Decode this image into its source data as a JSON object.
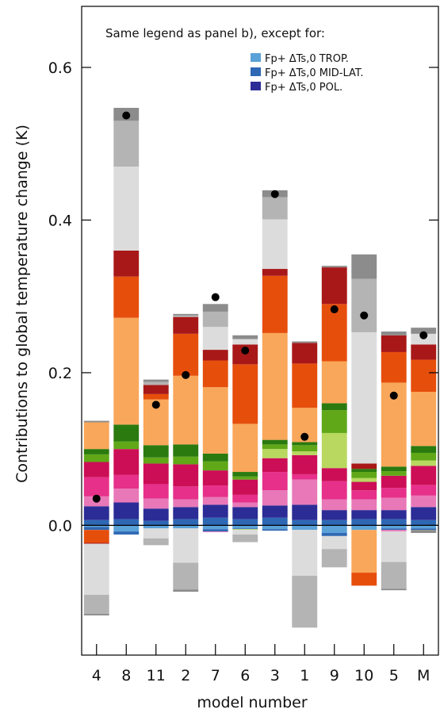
{
  "chart_data": {
    "type": "bar",
    "stacked": true,
    "xlabel": "model number",
    "ylabel": "Contributions to global temperature change (K)",
    "ylim": [
      -0.17,
      0.68
    ],
    "y_ticks": [
      "0.0",
      "0.2",
      "0.4",
      "0.6"
    ],
    "y_tick_values": [
      0.0,
      0.2,
      0.4,
      0.6
    ],
    "categories": [
      "4",
      "8",
      "11",
      "2",
      "7",
      "6",
      "3",
      "1",
      "9",
      "10",
      "5",
      "M"
    ],
    "annotation": "Same legend as panel b), except for:",
    "legend": {
      "placement": "top-right",
      "entries": [
        {
          "label": "Fp+ ΔTs,0 TROP.",
          "color": "#5aa2d8"
        },
        {
          "label": "Fp+ ΔTs,0 MID-LAT.",
          "color": "#2e68b4"
        },
        {
          "label": "Fp+ ΔTs,0 POL.",
          "color": "#2c2c96"
        }
      ]
    },
    "component_colors": [
      "#5aa2d8",
      "#2e68b4",
      "#2c2c96",
      "#e878b8",
      "#e6308a",
      "#cc0e56",
      "#b8d860",
      "#60a818",
      "#2a7a10",
      "#f9a75a",
      "#e64e0c",
      "#a81818",
      "#dcdcdc",
      "#b4b4b4",
      "#8c8c8c"
    ],
    "bars": [
      {
        "model": "4",
        "total": 0.035,
        "positive": [
          0.0,
          0.007,
          0.018,
          0.013,
          0.025,
          0.02,
          0.0,
          0.01,
          0.007,
          0.035,
          0.0,
          0.0,
          0.0,
          0.0,
          0.002
        ],
        "negative": [
          0.002,
          0.004,
          0.0,
          0.0,
          0.0,
          0.0,
          0.0,
          0.0,
          0.0,
          0.0,
          0.017,
          0.001,
          0.067,
          0.025,
          0.002
        ]
      },
      {
        "model": "8",
        "total": 0.537,
        "positive": [
          0.0,
          0.008,
          0.022,
          0.018,
          0.018,
          0.034,
          0.0,
          0.01,
          0.022,
          0.14,
          0.054,
          0.034,
          0.11,
          0.06,
          0.017
        ],
        "negative": [
          0.008,
          0.004,
          0.0,
          0.0,
          0.0,
          0.0,
          0.0,
          0.0,
          0.0,
          0.0,
          0.0,
          0.0,
          0.0,
          0.0,
          0.0
        ]
      },
      {
        "model": "11",
        "total": 0.158,
        "positive": [
          0.0,
          0.006,
          0.016,
          0.013,
          0.019,
          0.027,
          0.0,
          0.008,
          0.016,
          0.06,
          0.007,
          0.012,
          0.0,
          0.004,
          0.003
        ],
        "negative": [
          0.004,
          0.0,
          0.0,
          0.0,
          0.0,
          0.0,
          0.0,
          0.0,
          0.0,
          0.0,
          0.0,
          0.0,
          0.013,
          0.009,
          0.0
        ]
      },
      {
        "model": "2",
        "total": 0.197,
        "positive": [
          0.0,
          0.008,
          0.016,
          0.01,
          0.017,
          0.029,
          0.0,
          0.01,
          0.016,
          0.09,
          0.055,
          0.022,
          0.0,
          0.002,
          0.002
        ],
        "negative": [
          0.004,
          0.0,
          0.0,
          0.0,
          0.0,
          0.0,
          0.0,
          0.0,
          0.0,
          0.0,
          0.0,
          0.0,
          0.045,
          0.035,
          0.003
        ]
      },
      {
        "model": "7",
        "total": 0.299,
        "positive": [
          0.0,
          0.01,
          0.017,
          0.01,
          0.015,
          0.02,
          0.0,
          0.012,
          0.01,
          0.087,
          0.035,
          0.014,
          0.03,
          0.02,
          0.01
        ],
        "negative": [
          0.005,
          0.003,
          0.0,
          0.001,
          0.0,
          0.0,
          0.0,
          0.0,
          0.0,
          0.0,
          0.0,
          0.0,
          0.0,
          0.0,
          0.0
        ]
      },
      {
        "model": "6",
        "total": 0.229,
        "positive": [
          0.0,
          0.008,
          0.016,
          0.006,
          0.01,
          0.02,
          0.0,
          0.004,
          0.006,
          0.063,
          0.078,
          0.026,
          0.007,
          0.0,
          0.005
        ],
        "negative": [
          0.004,
          0.001,
          0.0,
          0.0,
          0.0,
          0.0,
          0.001,
          0.0,
          0.0,
          0.0,
          0.0,
          0.0,
          0.006,
          0.01,
          0.0
        ]
      },
      {
        "model": "3",
        "total": 0.434,
        "positive": [
          0.0,
          0.01,
          0.016,
          0.02,
          0.024,
          0.018,
          0.012,
          0.006,
          0.006,
          0.14,
          0.075,
          0.009,
          0.065,
          0.029,
          0.009
        ],
        "negative": [
          0.005,
          0.002,
          0.0,
          0.0,
          0.0,
          0.0,
          0.0,
          0.0,
          0.0,
          0.0,
          0.0,
          0.0,
          0.0,
          0.0,
          0.0
        ]
      },
      {
        "model": "1",
        "total": 0.116,
        "positive": [
          0.0,
          0.007,
          0.02,
          0.033,
          0.007,
          0.025,
          0.005,
          0.008,
          0.004,
          0.045,
          0.058,
          0.027,
          0.0,
          0.0,
          0.002
        ],
        "negative": [
          0.006,
          0.0,
          0.0,
          0.0,
          0.0,
          0.0,
          0.0,
          0.0,
          0.0,
          0.0,
          0.0,
          0.0,
          0.06,
          0.068,
          0.0
        ]
      },
      {
        "model": "9",
        "total": 0.283,
        "positive": [
          0.0,
          0.007,
          0.013,
          0.014,
          0.024,
          0.017,
          0.046,
          0.03,
          0.009,
          0.055,
          0.075,
          0.048,
          0.0,
          0.0,
          0.002
        ],
        "negative": [
          0.01,
          0.004,
          0.0,
          0.0,
          0.0,
          0.0,
          0.0,
          0.0,
          0.0,
          0.0,
          0.0,
          0.0,
          0.017,
          0.024,
          0.0
        ]
      },
      {
        "model": "10",
        "total": 0.275,
        "positive": [
          0.0,
          0.008,
          0.012,
          0.014,
          0.012,
          0.011,
          0.005,
          0.008,
          0.004,
          0.0,
          0.0,
          0.007,
          0.172,
          0.07,
          0.032
        ],
        "negative": [
          0.006,
          0.0,
          0.0,
          0.0,
          0.0,
          0.0,
          0.0,
          0.0,
          0.0,
          0.056,
          0.017,
          0.0,
          0.0,
          0.0,
          0.0
        ]
      },
      {
        "model": "5",
        "total": 0.17,
        "positive": [
          0.0,
          0.008,
          0.012,
          0.016,
          0.013,
          0.016,
          0.0,
          0.006,
          0.006,
          0.11,
          0.04,
          0.022,
          0.0,
          0.0,
          0.005
        ],
        "negative": [
          0.004,
          0.002,
          0.0,
          0.002,
          0.0,
          0.0,
          0.0,
          0.0,
          0.0,
          0.0,
          0.0,
          0.0,
          0.04,
          0.035,
          0.002
        ]
      },
      {
        "model": "M",
        "total": 0.249,
        "positive": [
          0.0,
          0.007,
          0.017,
          0.015,
          0.014,
          0.025,
          0.007,
          0.01,
          0.009,
          0.071,
          0.042,
          0.02,
          0.014,
          0.0,
          0.008
        ],
        "negative": [
          0.004,
          0.002,
          0.0,
          0.0,
          0.0,
          0.0,
          0.0,
          0.0,
          0.0,
          0.0,
          0.0,
          0.0,
          0.0,
          0.0,
          0.004
        ]
      }
    ]
  }
}
